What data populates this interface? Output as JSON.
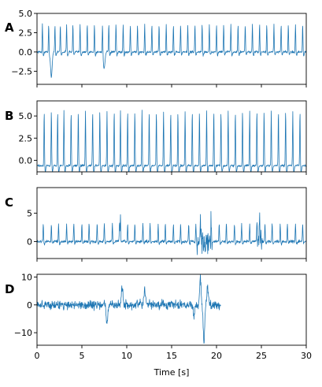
{
  "chart_data": [
    {
      "type": "line",
      "panel": "A",
      "xlim": [
        0,
        30
      ],
      "ylim": [
        -4.2,
        5.0
      ],
      "yticks": [
        -2.5,
        0.0,
        2.5,
        5.0
      ],
      "ytick_labels": [
        "−2.5",
        "0.0",
        "2.5",
        "5.0"
      ],
      "xticks": [
        0,
        5,
        10,
        15,
        20,
        25,
        30
      ],
      "show_xtick_labels": false,
      "color": "#1f77b4",
      "series": [
        {
          "baseline": 0.0,
          "noise": 0.25,
          "spike_height": 3.6,
          "spike_times": [
            0.6,
            1.3,
            2.0,
            2.6,
            3.3,
            4.0,
            4.8,
            5.6,
            6.4,
            7.3,
            8.0,
            8.8,
            9.6,
            10.4,
            11.2,
            12.0,
            12.8,
            13.6,
            14.4,
            15.2,
            16.0,
            16.8,
            17.6,
            18.4,
            19.2,
            20.0,
            20.8,
            21.6,
            22.4,
            23.2,
            24.0,
            24.8,
            25.6,
            26.4,
            27.2,
            28.0,
            28.8,
            29.6
          ],
          "dips": [
            [
              1.6,
              -3.3
            ],
            [
              7.5,
              -2.0
            ]
          ]
        }
      ]
    },
    {
      "type": "line",
      "panel": "B",
      "xlim": [
        0,
        30
      ],
      "ylim": [
        -1.3,
        6.7
      ],
      "yticks": [
        0.0,
        2.5,
        5.0
      ],
      "ytick_labels": [
        "0.0",
        "2.5",
        "5.0"
      ],
      "xticks": [
        0,
        5,
        10,
        15,
        20,
        25,
        30
      ],
      "show_xtick_labels": false,
      "color": "#1f77b4",
      "series": [
        {
          "baseline": -0.6,
          "noise": 0.2,
          "spike_height": 6.2,
          "spike_times": [
            0.8,
            1.6,
            2.3,
            3.0,
            3.8,
            4.6,
            5.4,
            6.2,
            7.0,
            7.8,
            8.6,
            9.3,
            10.1,
            10.9,
            11.7,
            12.5,
            13.3,
            14.1,
            14.9,
            15.7,
            16.5,
            17.3,
            18.1,
            18.9,
            19.7,
            20.5,
            21.3,
            22.1,
            22.9,
            23.7,
            24.5,
            25.3,
            26.1,
            26.9,
            27.7,
            28.5,
            29.3
          ],
          "dips": []
        }
      ]
    },
    {
      "type": "line",
      "panel": "C",
      "xlim": [
        0,
        30
      ],
      "ylim": [
        -3.0,
        9.5
      ],
      "yticks": [
        0,
        5
      ],
      "ytick_labels": [
        "0",
        "5"
      ],
      "xticks": [
        0,
        5,
        10,
        15,
        20,
        25,
        30
      ],
      "show_xtick_labels": false,
      "color": "#1f77b4",
      "series": [
        {
          "baseline": 0.0,
          "noise": 0.4,
          "spike_height": 3.2,
          "spike_times": [
            0.7,
            1.6,
            2.4,
            3.3,
            4.1,
            5.0,
            5.8,
            6.7,
            7.5,
            8.4,
            9.2,
            10.1,
            10.9,
            11.8,
            12.6,
            13.5,
            14.3,
            15.2,
            16.0,
            16.9,
            17.7,
            19.4,
            20.3,
            21.1,
            22.0,
            22.8,
            23.7,
            24.5,
            25.4,
            26.2,
            27.1,
            27.9,
            28.8,
            29.6
          ],
          "big_spikes": [
            [
              9.3,
              8.5
            ],
            [
              18.2,
              7.0
            ],
            [
              24.8,
              8.5
            ]
          ],
          "burst": [
            [
              17.8,
              19.5,
              3.5
            ],
            [
              24.5,
              25.2,
              3.0
            ]
          ]
        }
      ]
    },
    {
      "type": "line",
      "panel": "D",
      "xlim": [
        0,
        30
      ],
      "ylim": [
        -14.5,
        11.0
      ],
      "yticks": [
        -10,
        0,
        10
      ],
      "ytick_labels": [
        "−10",
        "0",
        "10"
      ],
      "xticks": [
        0,
        5,
        10,
        15,
        20,
        25,
        30
      ],
      "xtick_labels": [
        "0",
        "5",
        "10",
        "15",
        "20",
        "25",
        "30"
      ],
      "show_xtick_labels": true,
      "xlabel": "Time [s]",
      "color": "#1f77b4",
      "series": [
        {
          "x_end": 20.5,
          "noise": 2.2,
          "events": [
            [
              9.5,
              6.5
            ],
            [
              12.0,
              5.5
            ],
            [
              7.8,
              -7.0
            ],
            [
              18.2,
              9.5
            ],
            [
              18.6,
              -13.0
            ],
            [
              19.0,
              6.0
            ],
            [
              17.5,
              -4.0
            ]
          ]
        }
      ]
    }
  ],
  "panels": {
    "A": "A",
    "B": "B",
    "C": "C",
    "D": "D"
  },
  "xlabel": "Time [s]"
}
